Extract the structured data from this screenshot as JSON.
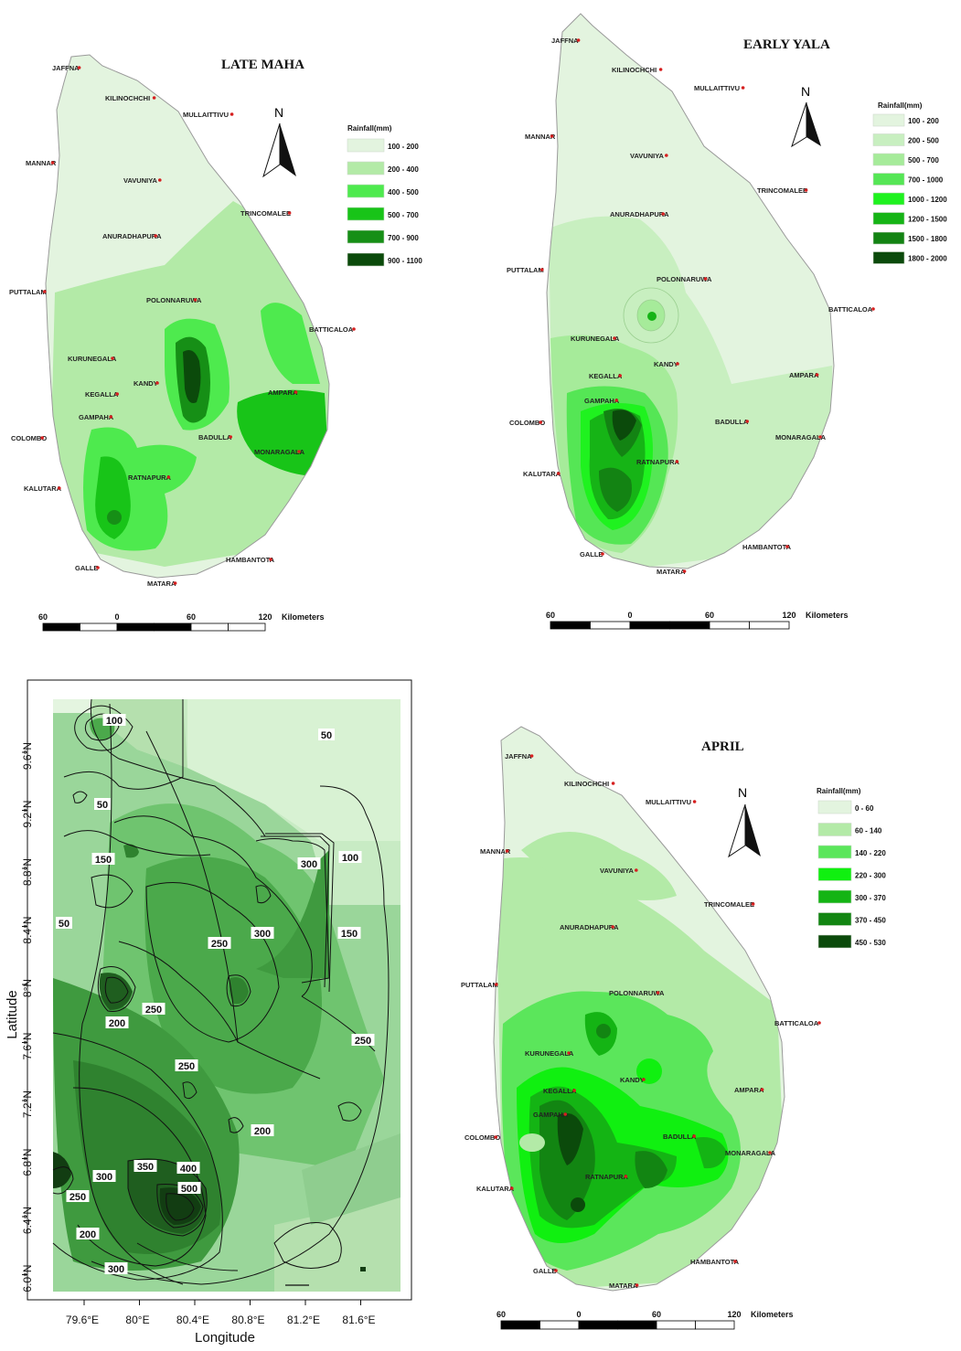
{
  "colors": {
    "island_outline": "#9a9a9a",
    "city_dot": "#d62020"
  },
  "maps": [
    {
      "id": "late-maha",
      "title": "LATE MAHA",
      "legend_title": "Rainfall(mm)",
      "legend": [
        {
          "label": "100 - 200",
          "color": "#e3f4df"
        },
        {
          "label": "200 - 400",
          "color": "#b3eaa7"
        },
        {
          "label": "400 - 500",
          "color": "#4eea4e"
        },
        {
          "label": "500 - 700",
          "color": "#18c418"
        },
        {
          "label": "700 - 900",
          "color": "#168f16"
        },
        {
          "label": "900 - 1100",
          "color": "#0b4a0b"
        }
      ],
      "scale": {
        "labels": [
          "60",
          "0",
          "60",
          "120"
        ],
        "unit": "Kilometers"
      },
      "cities": [
        "JAFFNA",
        "KILINOCHCHI",
        "MULLAITTIVU",
        "MANNAR",
        "VAVUNIYA",
        "TRINCOMALEE",
        "ANURADHAPURA",
        "PUTTALAM",
        "POLONNARUWA",
        "BATTICALOA",
        "KURUNEGALA",
        "KANDY",
        "KEGALLA",
        "AMPARA",
        "GAMPAHA",
        "BADULLA",
        "COLOMBO",
        "MONARAGALA",
        "RATNAPURA",
        "KALUTARA",
        "HAMBANTOTA",
        "GALLE",
        "MATARA"
      ]
    },
    {
      "id": "early-yala",
      "title": "EARLY YALA",
      "legend_title": "Rainfall(mm)",
      "legend": [
        {
          "label": "100 - 200",
          "color": "#e3f4df"
        },
        {
          "label": "200 - 500",
          "color": "#c8efc0"
        },
        {
          "label": "500 - 700",
          "color": "#a6eb9a"
        },
        {
          "label": "700 - 1000",
          "color": "#55e655"
        },
        {
          "label": "1000 - 1200",
          "color": "#1ff21f"
        },
        {
          "label": "1200 - 1500",
          "color": "#16b416"
        },
        {
          "label": "1500 - 1800",
          "color": "#138313"
        },
        {
          "label": "1800 - 2000",
          "color": "#0b4a0b"
        }
      ],
      "scale": {
        "labels": [
          "60",
          "0",
          "60",
          "120"
        ],
        "unit": "Kilometers"
      },
      "cities": [
        "JAFFNA",
        "KILINOCHCHI",
        "MULLAITTIVU",
        "MANNAR",
        "VAVUNIYA",
        "TRINCOMALEE",
        "ANURADHAPURA",
        "PUTTALAM",
        "POLONNARUWA",
        "BATTICALOA",
        "KURUNEGALA",
        "KANDY",
        "KEGALLA",
        "AMPARA",
        "GAMPAHA",
        "COLOMBO",
        "BADULLA",
        "RATNAPURA",
        "MONARAGALA",
        "KALUTARA",
        "HAMBANTOTA",
        "GALLE",
        "MATARA"
      ]
    },
    {
      "id": "april",
      "title": "APRIL",
      "legend_title": "Rainfall(mm)",
      "legend": [
        {
          "label": "0 - 60",
          "color": "#e3f4df"
        },
        {
          "label": "60 - 140",
          "color": "#b3eaa7"
        },
        {
          "label": "140 - 220",
          "color": "#5be65b"
        },
        {
          "label": "220 - 300",
          "color": "#10f010"
        },
        {
          "label": "300 - 370",
          "color": "#14b414"
        },
        {
          "label": "370 - 450",
          "color": "#128512"
        },
        {
          "label": "450 - 530",
          "color": "#0b4a0b"
        }
      ],
      "scale": {
        "labels": [
          "60",
          "0",
          "60",
          "120"
        ],
        "unit": "Kilometers"
      },
      "cities": [
        "JAFFNA",
        "KILINOCHCHI",
        "MULLAITTIVU",
        "MANNAR",
        "VAVUNIYA",
        "TRINCOMALEE",
        "ANURADHAPURA",
        "PUTTALAM",
        "POLONNARUWA",
        "BATTICALOA",
        "KURUNEGALA",
        "KANDY",
        "KEGALLA",
        "AMPARA",
        "GAMPAHA",
        "BADULLA",
        "COLOMBO",
        "MONARAGALA",
        "RATNAPURA",
        "KALUTARA",
        "HAMBANTOTA",
        "GALLE",
        "MATARA"
      ]
    }
  ],
  "north_label": "N",
  "model_plot": {
    "xlabel": "Longitude",
    "ylabel": "Latitude",
    "x_ticks": [
      "79.6°E",
      "80°E",
      "80.4°E",
      "80.8°E",
      "81.2°E",
      "81.6°E"
    ],
    "y_ticks": [
      "9.6°N",
      "9.2°N",
      "8.8°N",
      "8.4°N",
      "8°N",
      "7.6°N",
      "7.2°N",
      "6.8°N",
      "6.4°N",
      "6.0°N"
    ],
    "contour_labels": [
      "100",
      "50",
      "50",
      "150",
      "300",
      "100",
      "50",
      "300",
      "150",
      "250",
      "250",
      "200",
      "250",
      "250",
      "200",
      "350",
      "400",
      "500",
      "300",
      "250",
      "200",
      "300"
    ]
  }
}
